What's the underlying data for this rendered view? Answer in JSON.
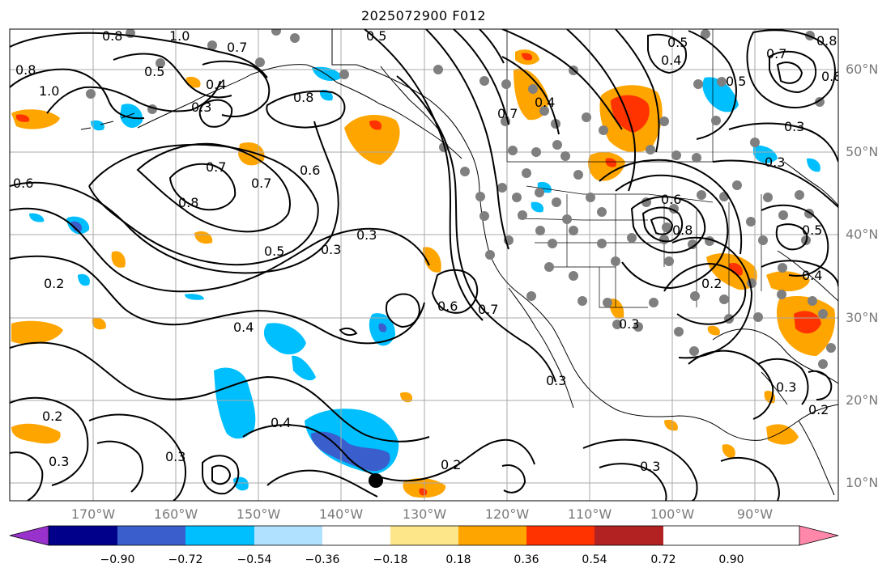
{
  "title": "2025072900 F012",
  "latitude_labels": [
    "60°N",
    "50°N",
    "40°N",
    "30°N",
    "20°N",
    "10°N"
  ],
  "longitude_labels": [
    "170°W",
    "160°W",
    "150°W",
    "140°W",
    "130°W",
    "120°W",
    "110°W",
    "100°W",
    "90°W"
  ],
  "contour_labels": [
    "0.8",
    "1.0",
    "0.7",
    "0.8",
    "0.5",
    "0.4",
    "0.8",
    "1.0",
    "0.5",
    "0.5",
    "0.8",
    "0.7",
    "0.4",
    "0.8",
    "0.6",
    "0.7",
    "0.8",
    "0.7",
    "0.6",
    "0.5",
    "0.3",
    "0.3",
    "0.6",
    "0.7",
    "0.4",
    "0.6",
    "0.8",
    "0.5",
    "0.3",
    "0.4",
    "0.2",
    "0.3",
    "0.7",
    "0.5",
    "0.3",
    "0.2",
    "0.3",
    "0.4",
    "0.3",
    "0.2",
    "0.3",
    "0.3",
    "0.2",
    "0.3",
    "0.2",
    "0.4",
    "0.3"
  ],
  "colorbar": {
    "colors": [
      "#9932cc",
      "#00008b",
      "#3a5fcd",
      "#00bfff",
      "#b0e2ff",
      "#ffffff",
      "#fde68a",
      "#ffa500",
      "#ff3300",
      "#b22222",
      "#ff88aa"
    ],
    "tick_labels": [
      "−0.90",
      "−0.72",
      "−0.54",
      "−0.36",
      "−0.18",
      "0.18",
      "0.36",
      "0.54",
      "0.72",
      "0.90"
    ]
  },
  "colors": {
    "frame": "#000000",
    "grid": "#a8a8a8",
    "coast": "#000000",
    "label": "#7a7a7a",
    "station": "#7f7f7f"
  }
}
